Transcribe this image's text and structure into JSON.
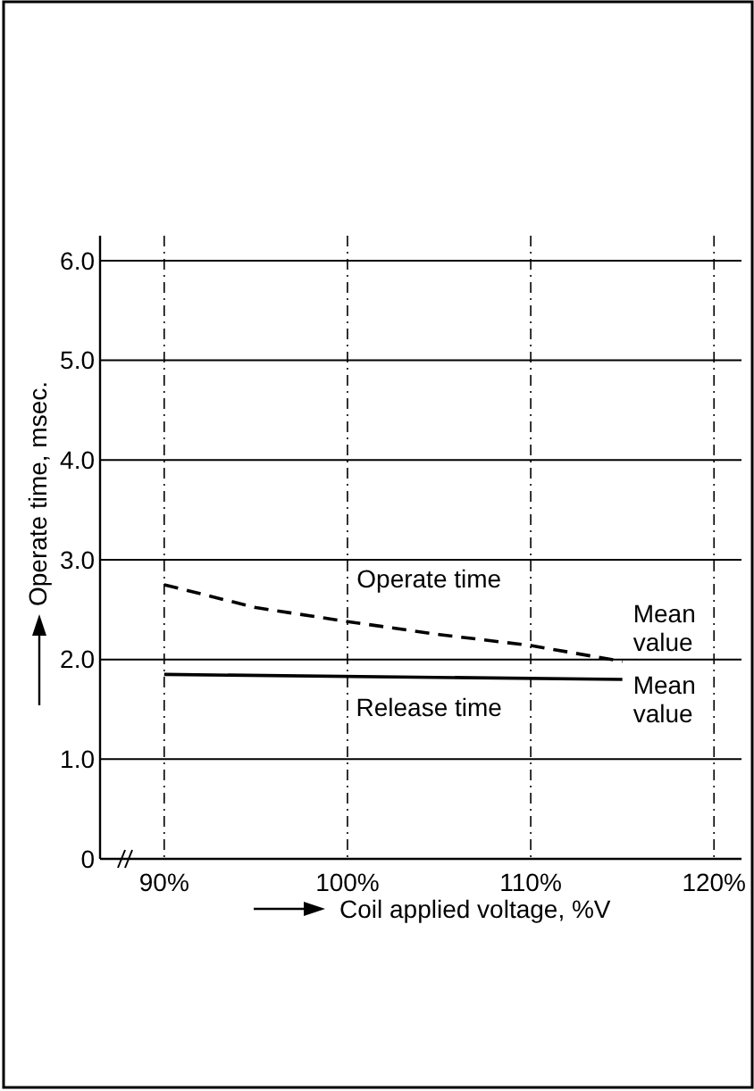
{
  "chart_data": {
    "type": "line",
    "xlabel": "Coil applied voltage, %V",
    "ylabel": "Operate time, msec.",
    "xlim": [
      86.5,
      121.5
    ],
    "ylim": [
      0,
      6.25
    ],
    "xticks": [
      {
        "value": 90,
        "label": "90%"
      },
      {
        "value": 100,
        "label": "100%"
      },
      {
        "value": 110,
        "label": "110%"
      },
      {
        "value": 120,
        "label": "120%"
      }
    ],
    "yticks": [
      0,
      {
        "value": 1,
        "label": "1.0"
      },
      {
        "value": 2,
        "label": "2.0"
      },
      {
        "value": 3,
        "label": "3.0"
      },
      {
        "value": 4,
        "label": "4.0"
      },
      {
        "value": 5,
        "label": "5.0"
      },
      {
        "value": 6,
        "label": "6.0"
      }
    ],
    "grid": true,
    "marker": "none",
    "series": [
      {
        "name": "Operate time",
        "color": "#000000",
        "line_style": "dashed",
        "x": [
          90,
          95,
          100,
          105,
          110,
          115
        ],
        "values": [
          2.75,
          2.52,
          2.38,
          2.25,
          2.14,
          1.98
        ]
      },
      {
        "name": "Release time",
        "color": "#000000",
        "line_style": "solid",
        "x": [
          90,
          115
        ],
        "values": [
          1.85,
          1.8
        ]
      }
    ],
    "annotations": [
      {
        "text": "Mean value",
        "x": 115,
        "y": 1.98
      },
      {
        "text": "Mean value",
        "x": 115,
        "y": 1.8
      }
    ]
  }
}
